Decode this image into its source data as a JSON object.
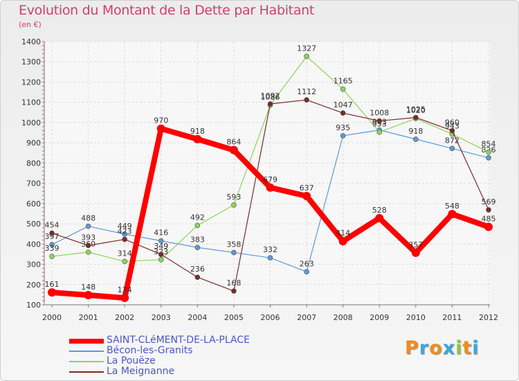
{
  "header": {
    "title": "Evolution du Montant de la Dette par Habitant",
    "subtitle": "(en €)"
  },
  "logo": {
    "letters": [
      "P",
      "r",
      "o",
      "x",
      "i",
      "t",
      "i"
    ],
    "colors": [
      "#f08c1c",
      "#3aa7e0",
      "#f08c1c",
      "#3aa7e0",
      "#8cc63f",
      "#f08c1c",
      "#3aa7e0"
    ]
  },
  "chart_data": {
    "type": "line",
    "x": [
      "2000",
      "2001",
      "2002",
      "2003",
      "2004",
      "2005",
      "2006",
      "2007",
      "2008",
      "2009",
      "2010",
      "2011",
      "2012"
    ],
    "ylim": [
      100,
      1400
    ],
    "yticks": [
      100,
      200,
      300,
      400,
      500,
      600,
      700,
      800,
      900,
      1000,
      1100,
      1200,
      1300,
      1400
    ],
    "grid": true,
    "legend_position": "bottom-left",
    "series": [
      {
        "name": "SAINT-CLéMENT-DE-LA-PLACE",
        "color": "#ff0000",
        "values": [
          161,
          148,
          134,
          970,
          918,
          864,
          679,
          637,
          414,
          528,
          357,
          548,
          485
        ]
      },
      {
        "name": "Bécon-les-Granits",
        "color": "#5b9bd5",
        "values": [
          397,
          488,
          449,
          416,
          383,
          358,
          332,
          263,
          935,
          963,
          918,
          872,
          826
        ]
      },
      {
        "name": "La Pouëze",
        "color": "#8cd45a",
        "values": [
          339,
          360,
          314,
          323,
          492,
          593,
          1086,
          1327,
          1165,
          953,
          1020,
          943,
          854
        ]
      },
      {
        "name": "La Meignanne",
        "color": "#7a2a2a",
        "values": [
          454,
          393,
          423,
          349,
          236,
          168,
          1092,
          1112,
          1047,
          1008,
          1025,
          960,
          569
        ]
      }
    ]
  }
}
